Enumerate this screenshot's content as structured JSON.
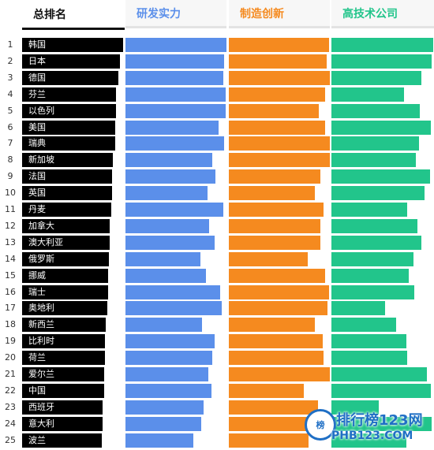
{
  "chart_data": {
    "type": "bar",
    "headers": {
      "rank": "总排名",
      "rd": "研发实力",
      "mfg": "制造创新",
      "hightech": "高技术公司"
    },
    "ranks": [
      "1",
      "2",
      "3",
      "4",
      "5",
      "6",
      "7",
      "8",
      "9",
      "10",
      "11",
      "12",
      "13",
      "14",
      "15",
      "16",
      "17",
      "18",
      "19",
      "20",
      "21",
      "22",
      "23",
      "24",
      "25"
    ],
    "categories": [
      "韩国",
      "日本",
      "德国",
      "芬兰",
      "以色列",
      "美国",
      "瑞典",
      "新加坡",
      "法国",
      "英国",
      "丹麦",
      "加拿大",
      "澳大利亚",
      "俄罗斯",
      "挪威",
      "瑞士",
      "奥地利",
      "新西兰",
      "比利时",
      "荷兰",
      "爱尔兰",
      "中国",
      "西班牙",
      "意大利",
      "波兰"
    ],
    "series": [
      {
        "name": "总排名",
        "color": "#000000",
        "values": [
          100,
          97,
          95,
          93,
          93,
          92,
          92,
          90,
          89,
          89,
          88,
          87,
          87,
          86,
          85,
          85,
          84,
          83,
          82,
          82,
          81,
          81,
          80,
          80,
          79
        ]
      },
      {
        "name": "研发实力",
        "color": "#5b8fea",
        "values": [
          100,
          98,
          97,
          99,
          99,
          92,
          98,
          86,
          89,
          81,
          97,
          83,
          88,
          74,
          80,
          94,
          95,
          76,
          88,
          86,
          82,
          85,
          77,
          75,
          67
        ]
      },
      {
        "name": "制造创新",
        "color": "#f58a1f",
        "values": [
          99,
          97,
          100,
          95,
          89,
          95,
          100,
          100,
          91,
          85,
          94,
          91,
          91,
          78,
          95,
          99,
          98,
          85,
          93,
          94,
          100,
          74,
          88,
          97,
          79
        ]
      },
      {
        "name": "高技术公司",
        "color": "#22c58b",
        "values": [
          99,
          98,
          88,
          71,
          86,
          97,
          85,
          82,
          96,
          91,
          74,
          84,
          88,
          80,
          75,
          81,
          52,
          63,
          73,
          74,
          93,
          97,
          46,
          98,
          73
        ]
      }
    ]
  },
  "watermark": {
    "badge": "榜",
    "title": "排行榜123网",
    "url": "PHB123.COM"
  }
}
